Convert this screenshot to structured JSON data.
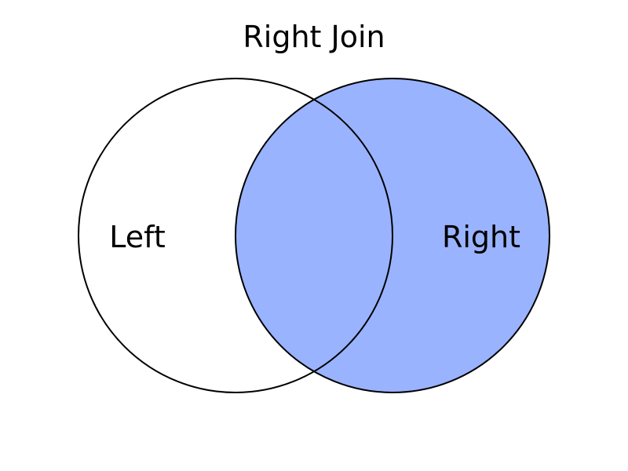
{
  "title": "Right Join",
  "sets": {
    "left": {
      "label": "Left",
      "fill": "#ffffff"
    },
    "right": {
      "label": "Right",
      "fill": "#99b3ff"
    }
  },
  "colors": {
    "highlight": "#99b3ff",
    "outline": "#000000",
    "background": "#ffffff",
    "text": "#000000"
  }
}
